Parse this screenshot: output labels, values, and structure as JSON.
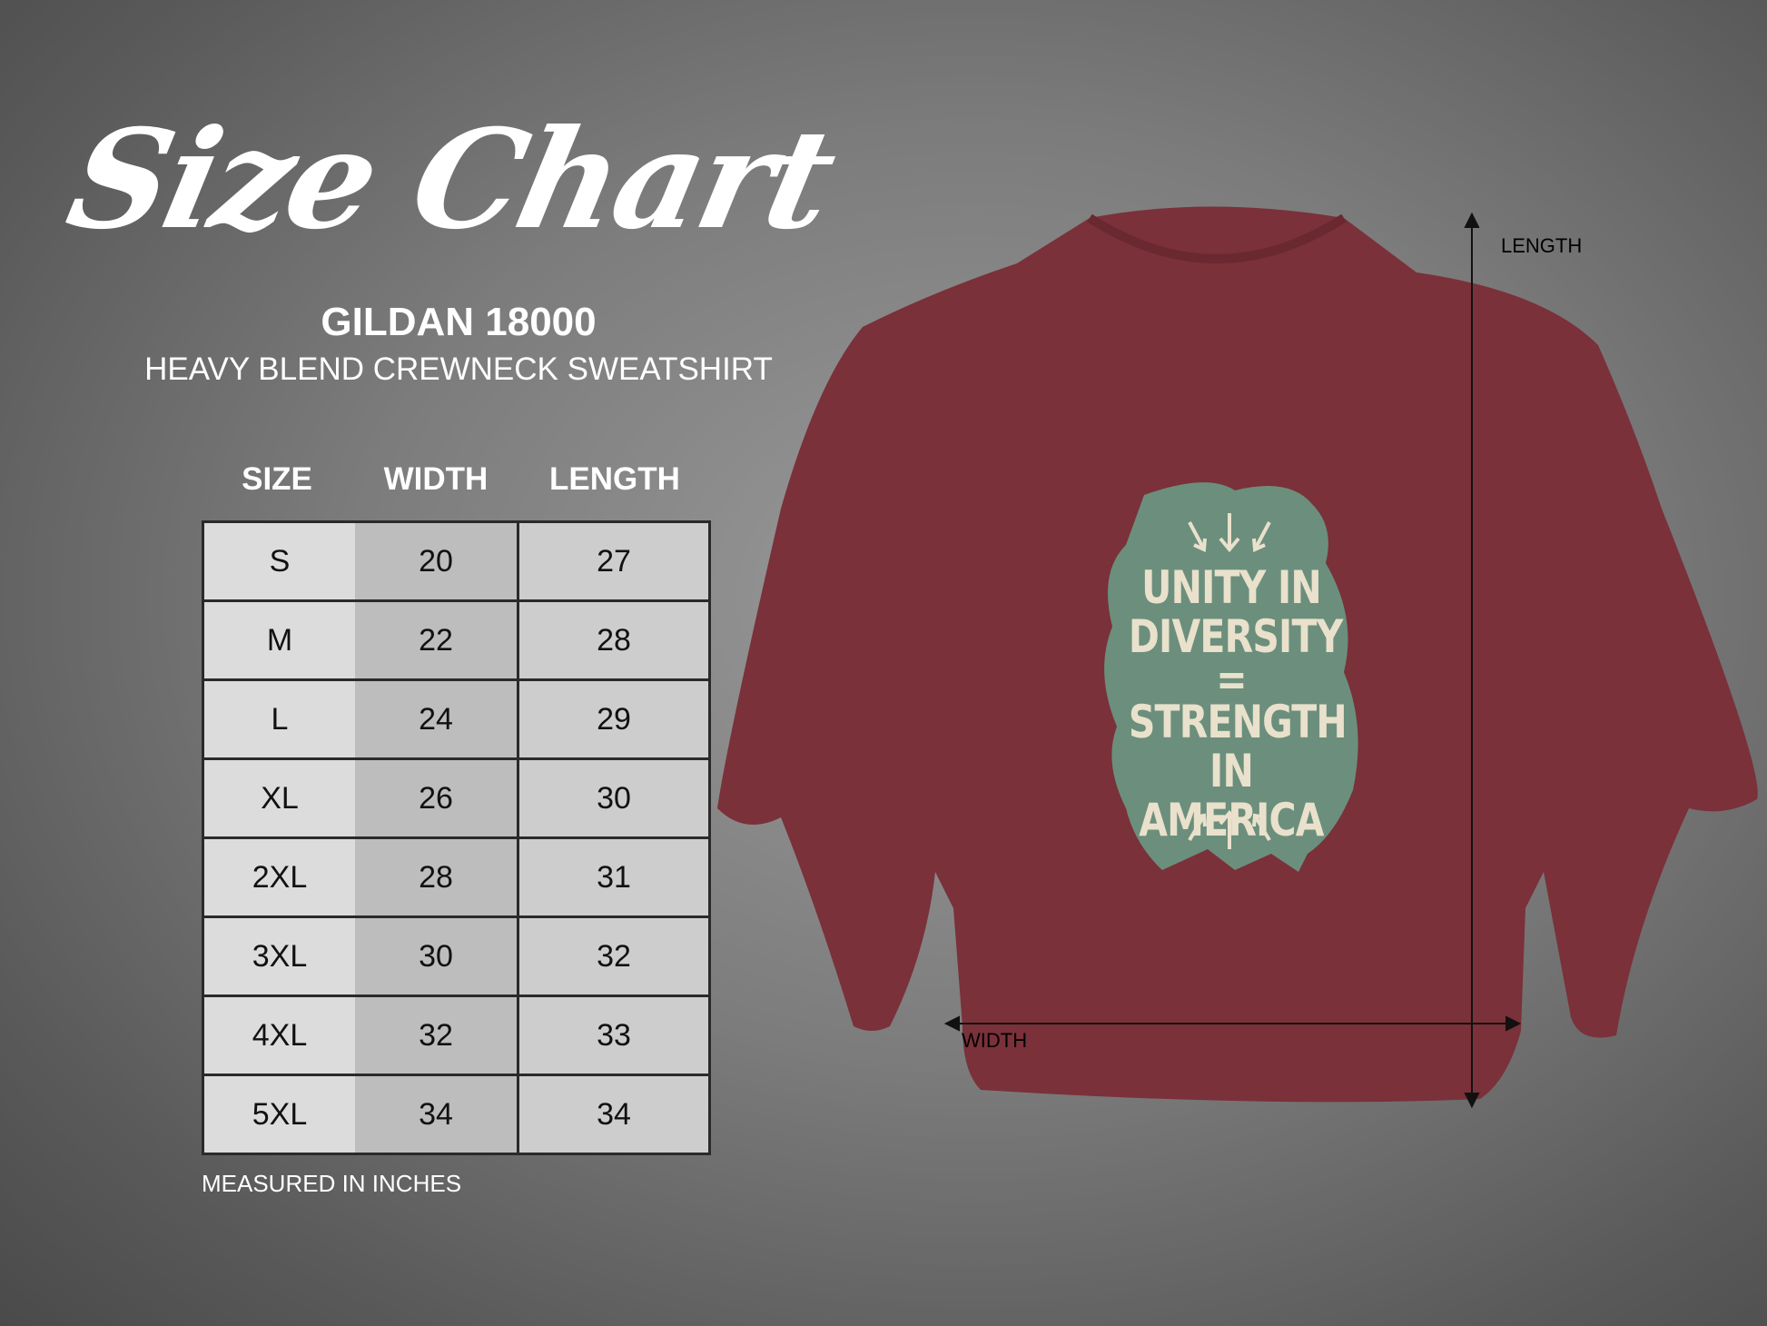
{
  "title": "Size Chart",
  "model": "GILDAN 18000",
  "subtitle": "HEAVY BLEND CREWNECK SWEATSHIRT",
  "table": {
    "headers": [
      "SIZE",
      "WIDTH",
      "LENGTH"
    ],
    "rows": [
      [
        "S",
        "20",
        "27"
      ],
      [
        "M",
        "22",
        "28"
      ],
      [
        "L",
        "24",
        "29"
      ],
      [
        "XL",
        "26",
        "30"
      ],
      [
        "2XL",
        "28",
        "31"
      ],
      [
        "3XL",
        "30",
        "32"
      ],
      [
        "4XL",
        "32",
        "33"
      ],
      [
        "5XL",
        "34",
        "34"
      ]
    ]
  },
  "note": "MEASURED IN INCHES",
  "diagram": {
    "length_label": "LENGTH",
    "width_label": "WIDTH"
  },
  "design": {
    "lines": [
      "UNITY IN",
      "DIVERSITY",
      "=",
      "STRENGTH",
      "IN AMERICA"
    ]
  },
  "colors": {
    "shirt": "#7a3139",
    "design_green": "#6b8f7c",
    "design_text": "#e9e1cc"
  }
}
